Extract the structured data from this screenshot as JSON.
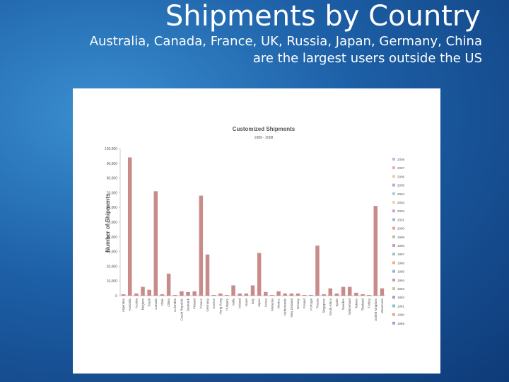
{
  "slide": {
    "title": "Shipments by Country",
    "subtitle_lines": [
      "Australia, Canada, France, UK, Russia, Japan, Germany, China",
      "are the largest users outside the US"
    ]
  },
  "chart_data": {
    "type": "bar",
    "title": "Customized Shipments",
    "subtitle": "1989 - 2008",
    "y_label": "Number of Shipments",
    "categories": [
      "Argentina",
      "Australia",
      "Austria",
      "Belgium",
      "Brazil",
      "Canada",
      "Chile",
      "China",
      "Colombia",
      "Czech Republic",
      "Denmark",
      "Finland",
      "France",
      "Germany",
      "Greece",
      "Hong Kong",
      "Hungary",
      "India",
      "Ireland",
      "Israel",
      "Italy",
      "Japan",
      "Korea",
      "Malaysia",
      "Mexico",
      "Netherlands",
      "New Zealand",
      "Norway",
      "Poland",
      "Portugal",
      "Russia",
      "Singapore",
      "South Africa",
      "Spain",
      "Sweden",
      "Switzerland",
      "Taiwan",
      "Thailand",
      "Turkey",
      "United Kingdom",
      "Venezuela"
    ],
    "values": [
      1000,
      94000,
      1500,
      6000,
      4000,
      71000,
      1000,
      15000,
      500,
      3000,
      2500,
      3000,
      68000,
      28000,
      500,
      1500,
      500,
      7000,
      1500,
      1500,
      7000,
      29000,
      2500,
      500,
      3000,
      1500,
      1500,
      1500,
      500,
      500,
      34000,
      1000,
      5000,
      1500,
      6000,
      6000,
      2000,
      1000,
      500,
      61000,
      5000
    ],
    "color": "#c98a8a",
    "ylim": [
      0,
      100000
    ],
    "yticks": [
      0,
      {
        "value": 10000,
        "label": "10,000"
      },
      {
        "value": 20000,
        "label": "20,000"
      },
      {
        "value": 30000,
        "label": "30,000"
      },
      {
        "value": 40000,
        "label": "40,000"
      },
      {
        "value": 50000,
        "label": "50,000"
      },
      {
        "value": 60000,
        "label": "60,000"
      },
      {
        "value": 70000,
        "label": "70,000"
      },
      {
        "value": 80000,
        "label": "80,000"
      },
      {
        "value": 90000,
        "label": "90,000"
      },
      {
        "value": 100000,
        "label": "100,000"
      }
    ],
    "legend": [
      "2008",
      "2007",
      "2006",
      "2005",
      "2004",
      "2003",
      "2002",
      "2001",
      "2000",
      "1999",
      "1998",
      "1997",
      "1996",
      "1995",
      "1994",
      "1993",
      "1992",
      "1991",
      "1990",
      "1989"
    ],
    "legend_colors": [
      "#a9c4e8",
      "#e8b0b0",
      "#f5c89a",
      "#b8a9d8",
      "#9dd0e0",
      "#f3d59a",
      "#c9a9c9",
      "#9fb8d8",
      "#e8a090",
      "#a8c8a0",
      "#c0a0d0",
      "#90c8d8",
      "#f0b080",
      "#98b0d8",
      "#d89898",
      "#b8d098",
      "#a898c8",
      "#88c0d0",
      "#e8a878",
      "#98a8d0"
    ]
  }
}
